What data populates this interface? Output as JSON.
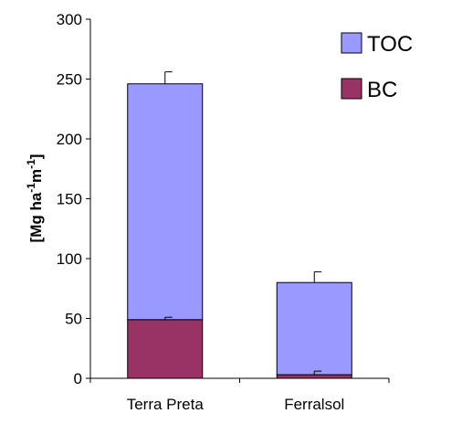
{
  "chart_data": {
    "type": "bar",
    "stacked": true,
    "categories": [
      "Terra Preta",
      "Ferralsol"
    ],
    "series": [
      {
        "name": "BC",
        "values": [
          49,
          3
        ],
        "error": [
          2,
          3
        ],
        "color": "#993366"
      },
      {
        "name": "TOC",
        "values": [
          197,
          77
        ],
        "error": [
          10,
          9
        ],
        "color": "#9999ff"
      }
    ],
    "totals": [
      246,
      80
    ],
    "ylim": [
      0,
      300
    ],
    "yticks": [
      0,
      50,
      100,
      150,
      200,
      250,
      300
    ],
    "ylabel": {
      "main": "[Mg ha",
      "sup1": "-1",
      "mid": "m",
      "sup2": "-1",
      "end": "]"
    },
    "xlabel": "",
    "title": "",
    "legend": {
      "position": "top-right",
      "order": [
        "TOC",
        "BC"
      ]
    },
    "grid": false
  }
}
